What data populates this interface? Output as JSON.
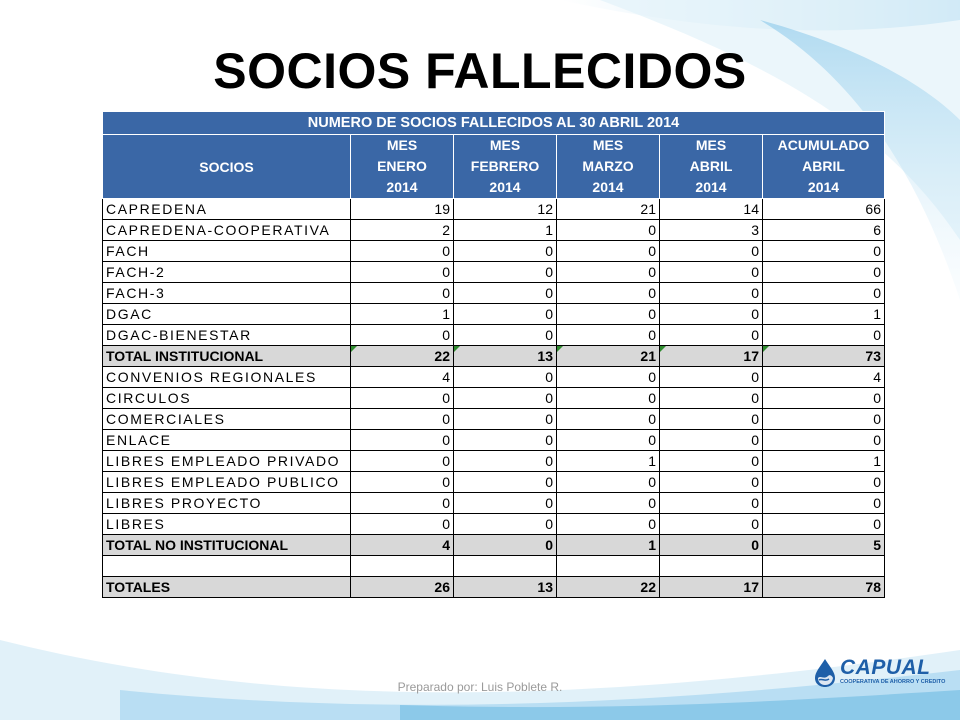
{
  "slide": {
    "title": "SOCIOS FALLECIDOS",
    "footer": "Preparado por: Luis Poblete R."
  },
  "table": {
    "title": "NUMERO DE SOCIOS FALLECIDOS AL 30 ABRIL 2014",
    "socios_header": "SOCIOS",
    "columns": [
      [
        "MES",
        "ENERO",
        "2014"
      ],
      [
        "MES",
        "FEBRERO",
        "2014"
      ],
      [
        "MES",
        "MARZO",
        "2014"
      ],
      [
        "MES",
        "ABRIL",
        "2014"
      ],
      [
        "ACUMULADO",
        "ABRIL",
        "2014"
      ]
    ],
    "rows": [
      {
        "label": "CAPREDENA",
        "values": [
          "19",
          "12",
          "21",
          "14",
          "66"
        ],
        "kind": "data"
      },
      {
        "label": "CAPREDENA-COOPERATIVA",
        "values": [
          "2",
          "1",
          "0",
          "3",
          "6"
        ],
        "kind": "data"
      },
      {
        "label": "FACH",
        "values": [
          "0",
          "0",
          "0",
          "0",
          "0"
        ],
        "kind": "data"
      },
      {
        "label": "FACH-2",
        "values": [
          "0",
          "0",
          "0",
          "0",
          "0"
        ],
        "kind": "data"
      },
      {
        "label": "FACH-3",
        "values": [
          "0",
          "0",
          "0",
          "0",
          "0"
        ],
        "kind": "data"
      },
      {
        "label": "DGAC",
        "values": [
          "1",
          "0",
          "0",
          "0",
          "1"
        ],
        "kind": "data"
      },
      {
        "label": "DGAC-BIENESTAR",
        "values": [
          "0",
          "0",
          "0",
          "0",
          "0"
        ],
        "kind": "data"
      },
      {
        "label": "TOTAL INSTITUCIONAL",
        "values": [
          "22",
          "13",
          "21",
          "17",
          "73"
        ],
        "kind": "total",
        "markers": true
      },
      {
        "label": "CONVENIOS REGIONALES",
        "values": [
          "4",
          "0",
          "0",
          "0",
          "4"
        ],
        "kind": "data"
      },
      {
        "label": "CIRCULOS",
        "values": [
          "0",
          "0",
          "0",
          "0",
          "0"
        ],
        "kind": "data"
      },
      {
        "label": "COMERCIALES",
        "values": [
          "0",
          "0",
          "0",
          "0",
          "0"
        ],
        "kind": "data"
      },
      {
        "label": "ENLACE",
        "values": [
          "0",
          "0",
          "0",
          "0",
          "0"
        ],
        "kind": "data"
      },
      {
        "label": "LIBRES EMPLEADO PRIVADO",
        "values": [
          "0",
          "0",
          "1",
          "0",
          "1"
        ],
        "kind": "data"
      },
      {
        "label": "LIBRES EMPLEADO PUBLICO",
        "values": [
          "0",
          "0",
          "0",
          "0",
          "0"
        ],
        "kind": "data"
      },
      {
        "label": "LIBRES PROYECTO",
        "values": [
          "0",
          "0",
          "0",
          "0",
          "0"
        ],
        "kind": "data"
      },
      {
        "label": "LIBRES",
        "values": [
          "0",
          "0",
          "0",
          "0",
          "0"
        ],
        "kind": "data"
      },
      {
        "label": "TOTAL NO INSTITUCIONAL",
        "values": [
          "4",
          "0",
          "1",
          "0",
          "5"
        ],
        "kind": "total",
        "markers": false
      },
      {
        "label": "",
        "values": [
          "",
          "",
          "",
          "",
          ""
        ],
        "kind": "blank"
      },
      {
        "label": "TOTALES",
        "values": [
          "26",
          "13",
          "22",
          "17",
          "78"
        ],
        "kind": "grand"
      }
    ]
  },
  "logo": {
    "name": "CAPUAL",
    "tagline": "COOPERATIVA DE AHORRO Y CREDITO",
    "icon": "water-drop-icon",
    "color": "#1e5fa8"
  },
  "colors": {
    "header_bg": "#3a67a6",
    "total_bg": "#d8d8d8",
    "marker": "#2e8b2e"
  }
}
